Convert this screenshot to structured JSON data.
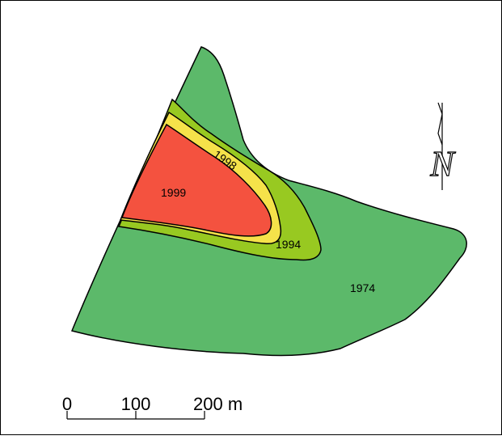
{
  "map": {
    "zones": [
      {
        "label": "1974",
        "color": "#5cb96a"
      },
      {
        "label": "1994",
        "color": "#98c921"
      },
      {
        "label": "1998",
        "color": "#f5e24a"
      },
      {
        "label": "1999",
        "color": "#f4523f"
      }
    ],
    "north_arrow": {
      "label": "N"
    },
    "scale_bar": {
      "ticks": [
        "0",
        "100",
        "200"
      ],
      "unit": "m",
      "last_label": "200 m"
    },
    "colors": {
      "outline": "#000000",
      "background": "#ffffff"
    }
  }
}
